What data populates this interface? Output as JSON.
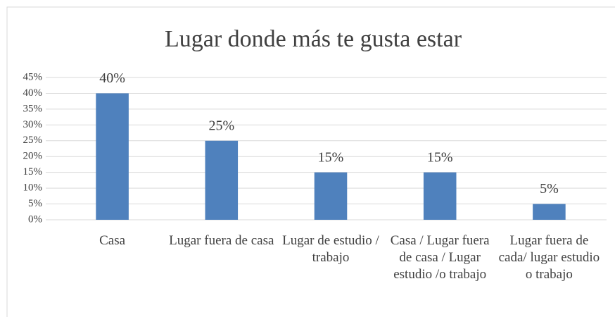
{
  "chart_data": {
    "type": "bar",
    "title": "Lugar donde más te gusta estar",
    "categories": [
      "Casa",
      "Lugar fuera de casa",
      "Lugar de estudio / trabajo",
      "Casa / Lugar fuera de casa / Lugar estudio /o trabajo",
      "Lugar fuera de cada/ lugar estudio o trabajo"
    ],
    "values": [
      40,
      25,
      15,
      15,
      5
    ],
    "value_labels": [
      "40%",
      "25%",
      "15%",
      "15%",
      "5%"
    ],
    "color": "#4f81bd",
    "ylim": [
      0,
      45
    ],
    "yticks": [
      {
        "value": 0,
        "label": "0%"
      },
      {
        "value": 5,
        "label": "5%"
      },
      {
        "value": 10,
        "label": "10%"
      },
      {
        "value": 15,
        "label": "15%"
      },
      {
        "value": 20,
        "label": "20%"
      },
      {
        "value": 25,
        "label": "25%"
      },
      {
        "value": 30,
        "label": "30%"
      },
      {
        "value": 35,
        "label": "35%"
      },
      {
        "value": 40,
        "label": "40%"
      },
      {
        "value": 45,
        "label": "45%"
      }
    ],
    "grid": true
  }
}
